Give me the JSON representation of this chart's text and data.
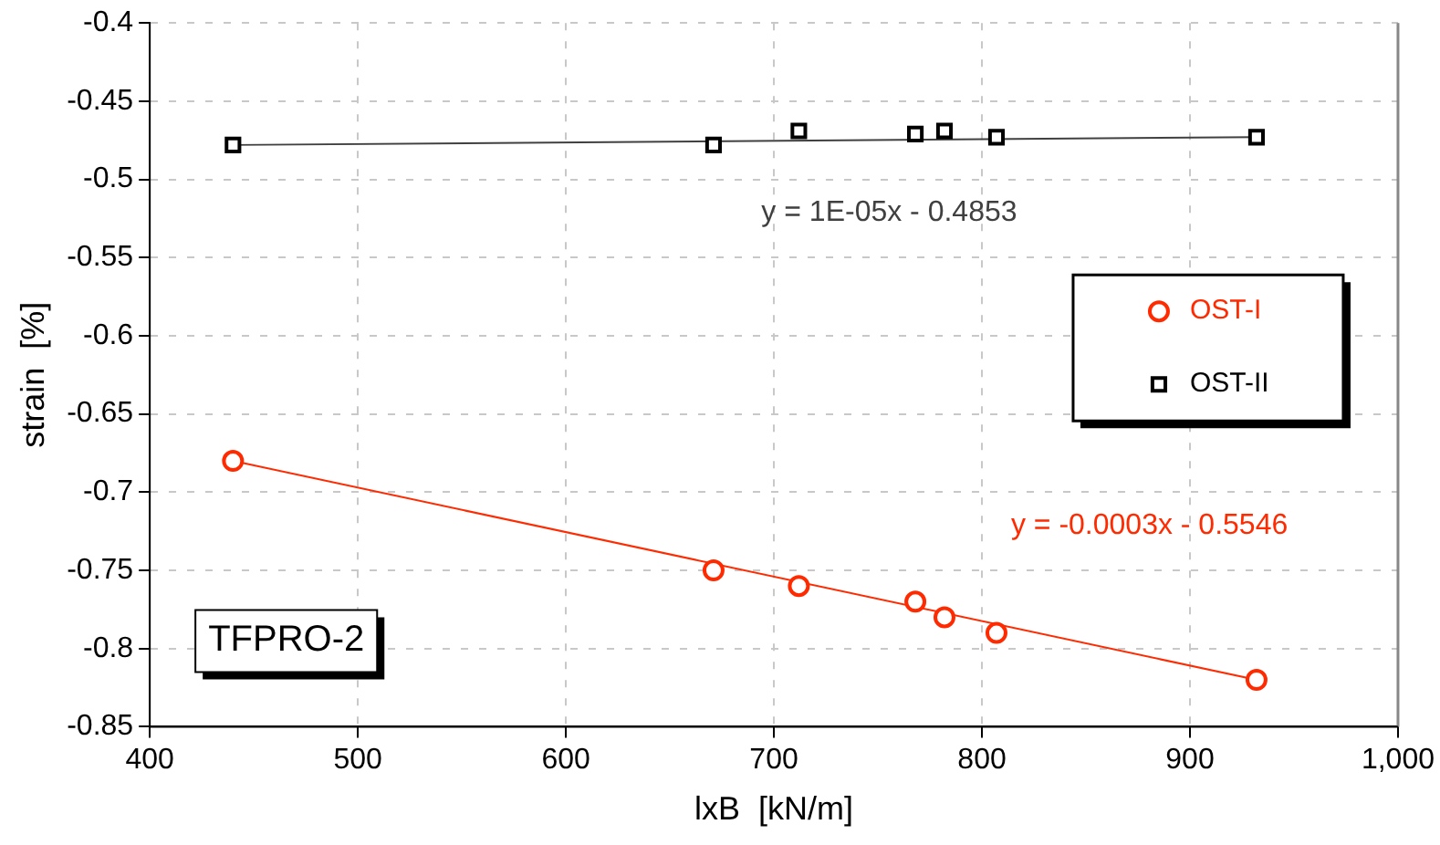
{
  "chart_data": {
    "type": "scatter",
    "xlabel": "lxB  [kN/m]",
    "ylabel": "strain  [%]",
    "xlim": [
      400,
      1000
    ],
    "xticks": [
      400,
      500,
      600,
      700,
      800,
      900,
      {
        "value": 1000,
        "label": "1,000"
      }
    ],
    "ylim": [
      -0.85,
      -0.4
    ],
    "yticks": [
      -0.85,
      -0.8,
      -0.75,
      -0.7,
      -0.65,
      -0.6,
      -0.55,
      -0.5,
      -0.45,
      -0.4
    ],
    "grid": true,
    "legend": "right",
    "series": [
      {
        "name": "OST-I",
        "color": "#ff2a00",
        "marker": "circle",
        "x": [
          440,
          671,
          712,
          768,
          782,
          807,
          932
        ],
        "values": [
          -0.68,
          -0.75,
          -0.76,
          -0.77,
          -0.78,
          -0.79,
          -0.82
        ]
      },
      {
        "name": "OST-II",
        "color": "#000000",
        "marker": "square",
        "x": [
          440,
          671,
          712,
          768,
          782,
          807,
          932
        ],
        "values": [
          -0.478,
          -0.478,
          -0.469,
          -0.471,
          -0.469,
          -0.473,
          -0.473
        ]
      },
      {
        "type": "line",
        "color": "#ff2a00",
        "marker": "none",
        "x": [
          440,
          932
        ],
        "values": [
          -0.68,
          -0.82
        ]
      },
      {
        "type": "line",
        "color": "#404040",
        "marker": "none",
        "x": [
          440,
          932
        ],
        "values": [
          -0.478,
          -0.473
        ]
      }
    ],
    "annotations": [
      "y = 1E-05x - 0.4853",
      "y = -0.0003x - 0.5546",
      "TFPRO-2"
    ]
  }
}
